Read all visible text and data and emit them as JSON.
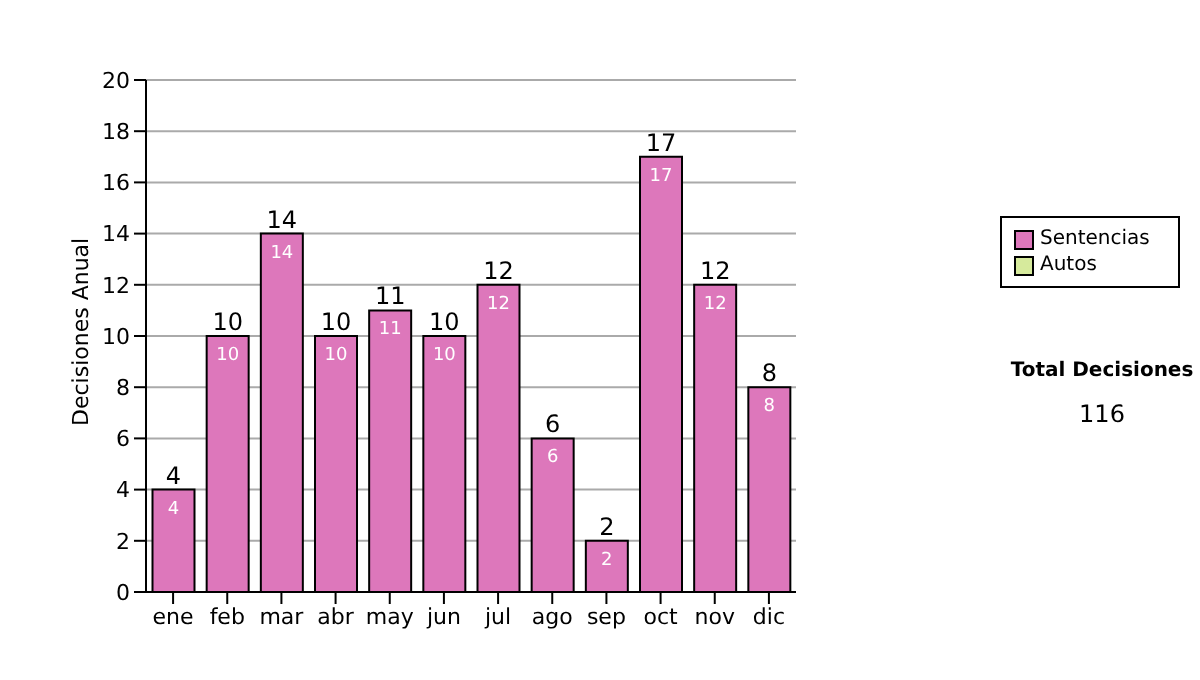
{
  "chart_data": {
    "type": "bar",
    "ylabel": "Decisiones Anual",
    "categories": [
      "ene",
      "feb",
      "mar",
      "abr",
      "may",
      "jun",
      "jul",
      "ago",
      "sep",
      "oct",
      "nov",
      "dic"
    ],
    "series": [
      {
        "name": "Sentencias",
        "color": "#dd77bb",
        "values": [
          4,
          10,
          14,
          10,
          11,
          10,
          12,
          6,
          2,
          17,
          12,
          8
        ],
        "value_labels": [
          "4",
          "10",
          "14",
          "10",
          "11",
          "10",
          "12",
          "6",
          "2",
          "17",
          "12",
          "8"
        ]
      },
      {
        "name": "Autos",
        "color": "#d6ea9c",
        "values": [
          0,
          0,
          0,
          0,
          0,
          0,
          0,
          0,
          0,
          0,
          0,
          0
        ]
      }
    ],
    "stacked": true,
    "totals": [
      "4",
      "10",
      "14",
      "10",
      "11",
      "10",
      "12",
      "6",
      "2",
      "17",
      "12",
      "8"
    ],
    "ylim": [
      0,
      20
    ],
    "yticks": [
      0,
      2,
      4,
      6,
      8,
      10,
      12,
      14,
      16,
      18,
      20
    ],
    "grid": "y",
    "legend": "right",
    "annotations": [
      "Total Decisiones",
      "116"
    ]
  }
}
